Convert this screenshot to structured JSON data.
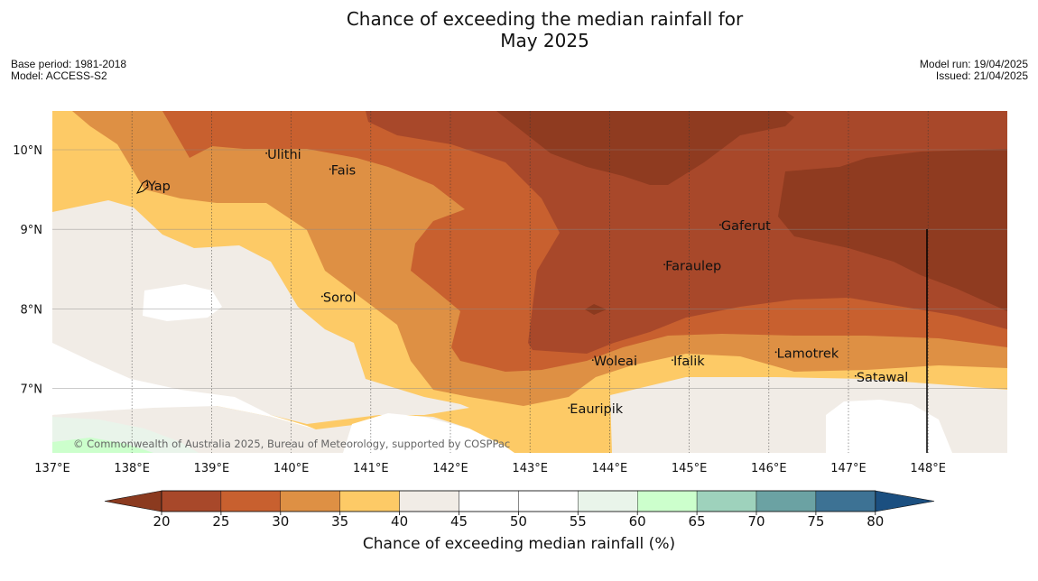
{
  "header": {
    "title_line1": "Chance of exceeding the median rainfall for",
    "title_line2": "May 2025",
    "base_period": "Base period: 1981-2018",
    "model": "Model: ACCESS-S2",
    "model_run": "Model run: 19/04/2025",
    "issued": "Issued: 21/04/2025"
  },
  "map": {
    "lon_range": [
      137.0,
      149.0
    ],
    "lat_range": [
      6.2,
      10.5
    ],
    "x_ticks": [
      "137°E",
      "138°E",
      "139°E",
      "140°E",
      "141°E",
      "142°E",
      "143°E",
      "144°E",
      "145°E",
      "146°E",
      "147°E",
      "148°E"
    ],
    "y_ticks": [
      "10°N",
      "9°N",
      "8°N",
      "7°N"
    ],
    "gridlines": true,
    "copyright": "© Commonwealth of Australia 2025, Bureau of Meteorology, supported by COSPPac",
    "places": [
      {
        "name": "Yap",
        "lon": 138.2,
        "lat": 9.5
      },
      {
        "name": "Ulithi",
        "lon": 139.7,
        "lat": 9.9
      },
      {
        "name": "Fais",
        "lon": 140.5,
        "lat": 9.7
      },
      {
        "name": "Gaferut",
        "lon": 145.4,
        "lat": 9.0
      },
      {
        "name": "Faraulep",
        "lon": 144.7,
        "lat": 8.5
      },
      {
        "name": "Sorol",
        "lon": 140.4,
        "lat": 8.1
      },
      {
        "name": "Lamotrek",
        "lon": 146.1,
        "lat": 7.4
      },
      {
        "name": "Woleai",
        "lon": 143.8,
        "lat": 7.3
      },
      {
        "name": "Ifalik",
        "lon": 144.8,
        "lat": 7.3
      },
      {
        "name": "Satawal",
        "lon": 147.1,
        "lat": 7.1
      },
      {
        "name": "Eauripik",
        "lon": 143.5,
        "lat": 6.7
      }
    ]
  },
  "colorbar": {
    "title": "Chance of exceeding median rainfall (%)",
    "ticks": [
      "20",
      "25",
      "30",
      "35",
      "40",
      "45",
      "50",
      "55",
      "60",
      "65",
      "70",
      "75",
      "80"
    ],
    "below_color": "#8b3a1f",
    "above_color": "#1b4f80",
    "bins": [
      {
        "range": "20-25",
        "color": "#a8482a"
      },
      {
        "range": "25-30",
        "color": "#c8602f"
      },
      {
        "range": "30-35",
        "color": "#de9044"
      },
      {
        "range": "35-40",
        "color": "#fdca66"
      },
      {
        "range": "40-45",
        "color": "#f1ece6"
      },
      {
        "range": "45-50",
        "color": "#ffffff"
      },
      {
        "range": "50-55",
        "color": "#ffffff"
      },
      {
        "range": "55-60",
        "color": "#e9f4ea"
      },
      {
        "range": "60-65",
        "color": "#ccffcc"
      },
      {
        "range": "65-70",
        "color": "#9ed2bc"
      },
      {
        "range": "70-75",
        "color": "#6ba2a3"
      },
      {
        "range": "75-80",
        "color": "#3d7294"
      }
    ]
  }
}
